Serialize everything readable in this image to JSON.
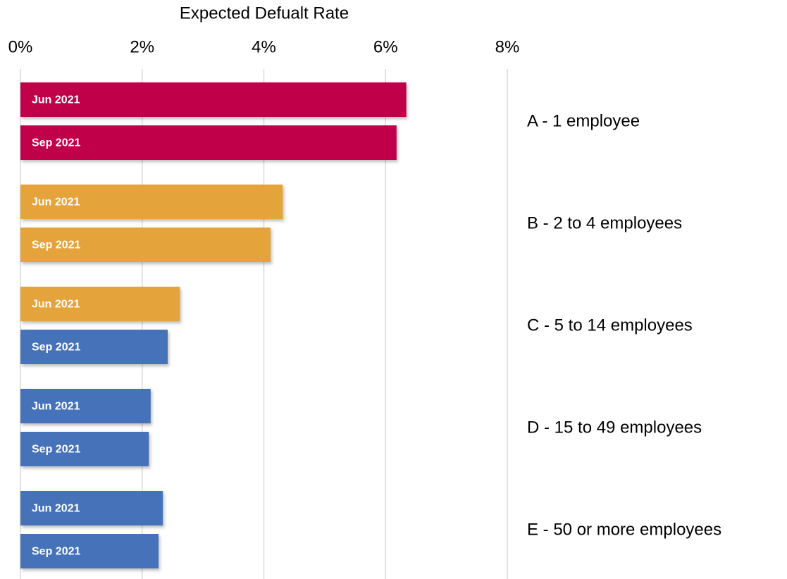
{
  "chart_data": {
    "type": "bar",
    "orientation": "horizontal",
    "title": "Expected Defualt Rate",
    "categories": [
      "A - 1 employee",
      "B - 2 to 4 employees",
      "C - 5 to 14 employees",
      "D - 15 to 49 employees",
      "E - 50 or more employees"
    ],
    "series": [
      {
        "name": "Jun 2021",
        "colors": [
          "#c0004a",
          "#e5a33a",
          "#e5a33a",
          "#4472b8",
          "#4472b8"
        ],
        "values": [
          6.34,
          4.31,
          2.62,
          2.14,
          2.34
        ]
      },
      {
        "name": "Sep 2021",
        "colors": [
          "#c0004a",
          "#e5a33a",
          "#4472b8",
          "#4472b8",
          "#4472b8"
        ],
        "values": [
          6.18,
          4.11,
          2.42,
          2.11,
          2.27
        ]
      }
    ],
    "xlim": [
      0,
      8
    ],
    "xticks": [
      {
        "value": 0,
        "label": "0%"
      },
      {
        "value": 2,
        "label": "2%"
      },
      {
        "value": 4,
        "label": "4%"
      },
      {
        "value": 6,
        "label": "6%"
      },
      {
        "value": 8,
        "label": "8%"
      }
    ],
    "grid": true
  }
}
